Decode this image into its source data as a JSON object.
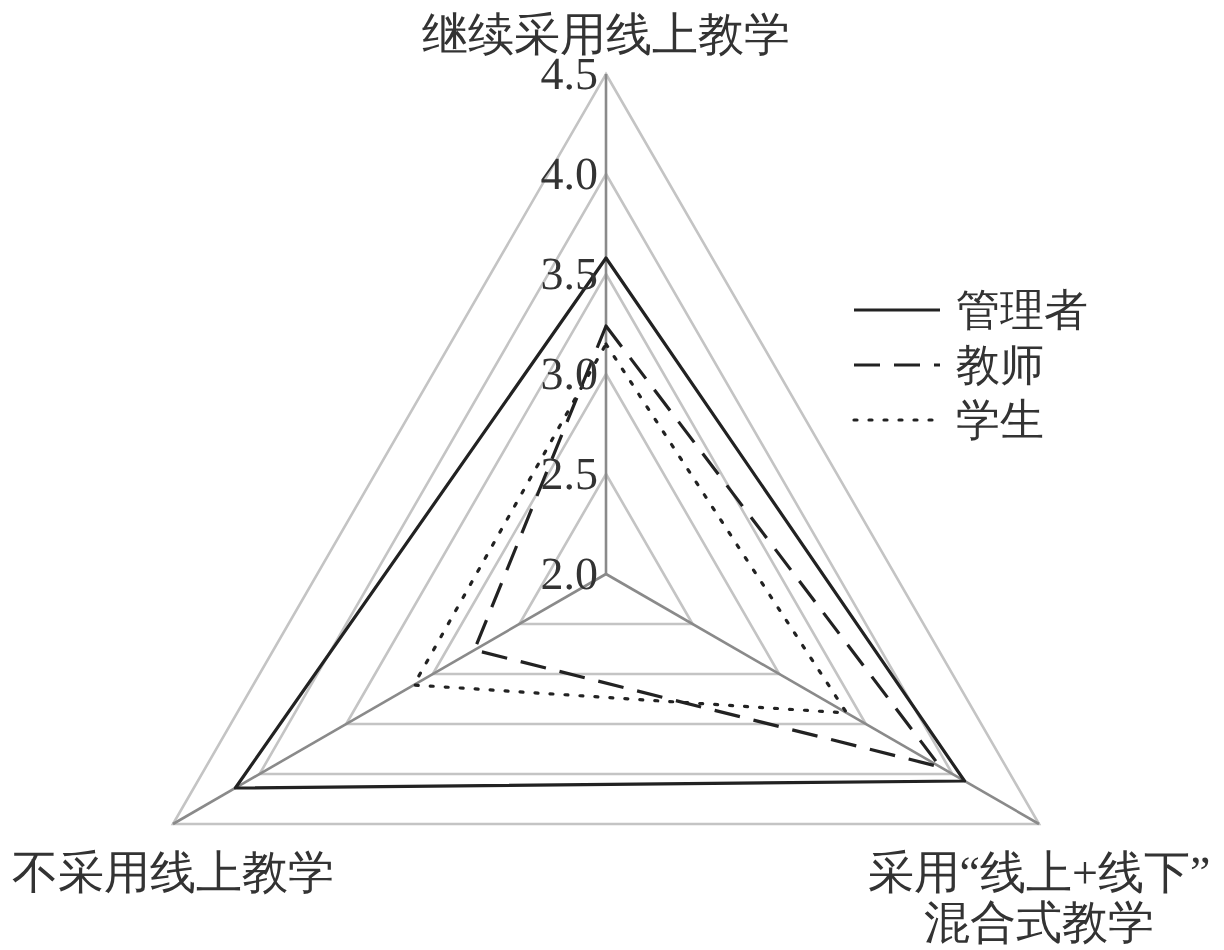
{
  "chart_data": {
    "type": "radar",
    "categories": [
      "继续采用线上教学",
      "采用“线上+线下”\n混合式教学",
      "不采用线上教学"
    ],
    "series": [
      {
        "name": "管理者",
        "color": "#222222",
        "line_style": "solid",
        "values": [
          3.58,
          4.07,
          4.14
        ]
      },
      {
        "name": "教师",
        "color": "#222222",
        "line_style": "dashed",
        "values": [
          3.24,
          3.93,
          2.76
        ]
      },
      {
        "name": "学生",
        "color": "#222222",
        "line_style": "dotted",
        "values": [
          3.15,
          3.39,
          3.11
        ]
      }
    ],
    "ylim": [
      2.0,
      4.5
    ],
    "yticks": [
      {
        "value": 2.0,
        "label": "2.0"
      },
      {
        "value": 2.5,
        "label": "2.5"
      },
      {
        "value": 3.0,
        "label": "3.0"
      },
      {
        "value": 3.5,
        "label": "3.5"
      },
      {
        "value": 4.0,
        "label": "4.0"
      },
      {
        "value": 4.5,
        "label": "4.5"
      }
    ],
    "grid": true,
    "legend": "right"
  }
}
